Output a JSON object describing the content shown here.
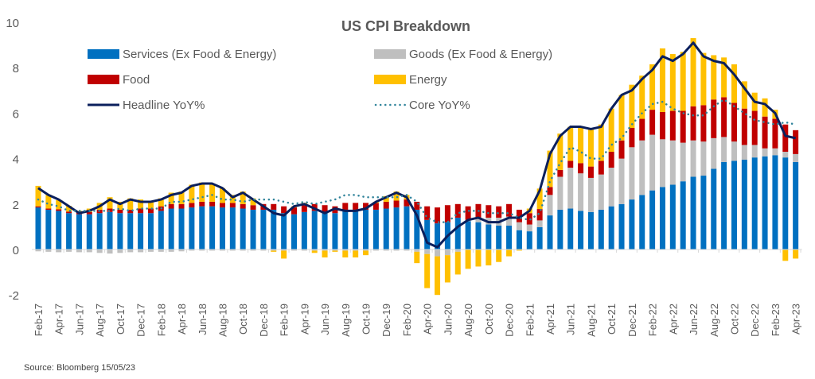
{
  "chart_data": {
    "type": "bar",
    "stacked": true,
    "title": "US CPI Breakdown",
    "xlabel": "",
    "ylabel": "",
    "ylim": [
      -2,
      10
    ],
    "y_ticks": [
      "-2",
      "0",
      "2",
      "4",
      "6",
      "8",
      "10"
    ],
    "y_tick_values": [
      -2,
      0,
      2,
      4,
      6,
      8,
      10
    ],
    "frequency": "monthly",
    "x_tick_labels": [
      "Feb-17",
      "Apr-17",
      "Jun-17",
      "Aug-17",
      "Oct-17",
      "Dec-17",
      "Feb-18",
      "Apr-18",
      "Jun-18",
      "Aug-18",
      "Oct-18",
      "Dec-18",
      "Feb-19",
      "Apr-19",
      "Jun-19",
      "Aug-19",
      "Oct-19",
      "Dec-19",
      "Feb-20",
      "Apr-20",
      "Jun-20",
      "Aug-20",
      "Oct-20",
      "Dec-20",
      "Feb-21",
      "Apr-21",
      "Jun-21",
      "Aug-21",
      "Oct-21",
      "Dec-21",
      "Feb-22",
      "Apr-22",
      "Jun-22",
      "Aug-22",
      "Oct-22",
      "Dec-22",
      "Feb-23",
      "Apr-23"
    ],
    "legend_position": "top",
    "grid": false,
    "series": [
      {
        "name": "Services (Ex Food & Energy)",
        "kind": "bar",
        "color": "#0070C0",
        "values": [
          1.85,
          1.75,
          1.7,
          1.6,
          1.55,
          1.55,
          1.6,
          1.65,
          1.6,
          1.6,
          1.6,
          1.6,
          1.7,
          1.8,
          1.8,
          1.85,
          1.9,
          1.9,
          1.85,
          1.85,
          1.8,
          1.75,
          1.75,
          1.75,
          1.6,
          1.55,
          1.65,
          1.7,
          1.65,
          1.6,
          1.75,
          1.75,
          1.75,
          1.75,
          1.8,
          1.85,
          1.9,
          1.75,
          1.3,
          1.15,
          1.2,
          1.4,
          1.25,
          1.2,
          1.1,
          1.05,
          1.05,
          0.85,
          0.8,
          0.98,
          1.5,
          1.75,
          1.8,
          1.7,
          1.65,
          1.75,
          1.9,
          2.0,
          2.2,
          2.4,
          2.6,
          2.75,
          2.85,
          3.0,
          3.2,
          3.25,
          3.55,
          3.85,
          3.9,
          3.95,
          4.05,
          4.1,
          4.15,
          4.05,
          3.85
        ]
      },
      {
        "name": "Goods (Ex Food & Energy)",
        "kind": "bar",
        "color": "#BFBFBF",
        "values": [
          -0.08,
          -0.1,
          -0.12,
          -0.1,
          -0.12,
          -0.12,
          -0.15,
          -0.18,
          -0.15,
          -0.12,
          -0.12,
          -0.1,
          -0.1,
          -0.1,
          -0.08,
          -0.05,
          -0.05,
          -0.05,
          -0.05,
          -0.05,
          -0.05,
          -0.05,
          -0.05,
          -0.05,
          -0.05,
          -0.05,
          -0.05,
          -0.05,
          -0.05,
          -0.05,
          -0.05,
          -0.05,
          -0.05,
          -0.05,
          -0.05,
          -0.05,
          -0.05,
          -0.1,
          -0.2,
          -0.3,
          -0.25,
          -0.1,
          0.05,
          0.2,
          0.3,
          0.35,
          0.4,
          0.35,
          0.3,
          0.3,
          0.9,
          1.45,
          1.8,
          1.65,
          1.5,
          1.55,
          1.7,
          2.0,
          2.3,
          2.4,
          2.45,
          2.1,
          1.95,
          1.7,
          1.6,
          1.5,
          1.35,
          1.1,
          0.85,
          0.65,
          0.55,
          0.35,
          0.3,
          0.25,
          0.35
        ]
      },
      {
        "name": "Food",
        "kind": "bar",
        "color": "#C00000",
        "values": [
          0.05,
          0.05,
          0.07,
          0.07,
          0.1,
          0.1,
          0.15,
          0.15,
          0.15,
          0.15,
          0.2,
          0.2,
          0.2,
          0.2,
          0.2,
          0.2,
          0.2,
          0.2,
          0.2,
          0.2,
          0.2,
          0.2,
          0.25,
          0.25,
          0.3,
          0.3,
          0.3,
          0.3,
          0.3,
          0.3,
          0.3,
          0.3,
          0.3,
          0.3,
          0.3,
          0.3,
          0.3,
          0.35,
          0.6,
          0.7,
          0.75,
          0.6,
          0.6,
          0.6,
          0.55,
          0.5,
          0.55,
          0.55,
          0.5,
          0.5,
          0.35,
          0.3,
          0.3,
          0.45,
          0.5,
          0.6,
          0.7,
          0.8,
          0.85,
          0.95,
          1.1,
          1.2,
          1.3,
          1.4,
          1.5,
          1.6,
          1.7,
          1.75,
          1.7,
          1.6,
          1.5,
          1.4,
          1.3,
          1.2,
          1.05
        ]
      },
      {
        "name": "Energy",
        "kind": "bar",
        "color": "#FFC000",
        "values": [
          0.9,
          0.6,
          0.4,
          0.25,
          0.05,
          0.15,
          0.3,
          0.5,
          0.35,
          0.5,
          0.4,
          0.35,
          0.35,
          0.5,
          0.55,
          0.8,
          0.85,
          0.8,
          0.65,
          0.35,
          0.55,
          0.3,
          0.0,
          -0.05,
          -0.35,
          0.05,
          0.1,
          -0.1,
          -0.3,
          -0.05,
          -0.3,
          -0.3,
          -0.2,
          0.05,
          0.25,
          0.4,
          0.2,
          -0.5,
          -1.5,
          -1.7,
          -1.2,
          -1.0,
          -0.85,
          -0.75,
          -0.7,
          -0.55,
          -0.3,
          -0.05,
          0.2,
          0.9,
          1.6,
          1.6,
          1.5,
          1.6,
          1.65,
          1.6,
          1.9,
          2.0,
          1.9,
          1.9,
          2.0,
          2.8,
          2.5,
          2.6,
          3.0,
          2.3,
          1.95,
          1.75,
          1.7,
          1.2,
          0.8,
          0.8,
          0.4,
          -0.5,
          -0.4
        ]
      },
      {
        "name": "Headline YoY%",
        "kind": "line",
        "color": "#0B1F5C",
        "values": [
          2.7,
          2.4,
          2.2,
          1.9,
          1.6,
          1.7,
          1.9,
          2.2,
          2.0,
          2.2,
          2.1,
          2.1,
          2.2,
          2.4,
          2.5,
          2.8,
          2.9,
          2.9,
          2.7,
          2.3,
          2.5,
          2.2,
          1.9,
          1.6,
          1.5,
          1.9,
          2.0,
          1.8,
          1.6,
          1.8,
          1.7,
          1.7,
          1.8,
          2.1,
          2.3,
          2.5,
          2.3,
          1.5,
          0.3,
          0.1,
          0.6,
          1.0,
          1.3,
          1.4,
          1.2,
          1.2,
          1.4,
          1.4,
          1.7,
          2.6,
          4.2,
          5.0,
          5.4,
          5.4,
          5.3,
          5.4,
          6.2,
          6.8,
          7.0,
          7.5,
          7.9,
          8.5,
          8.3,
          8.6,
          9.1,
          8.5,
          8.3,
          8.2,
          7.7,
          7.1,
          6.5,
          6.4,
          6.0,
          5.0,
          4.9
        ]
      },
      {
        "name": "Core YoY%",
        "kind": "dotted-line",
        "color": "#31849B",
        "values": [
          2.2,
          2.0,
          1.9,
          1.7,
          1.7,
          1.7,
          1.7,
          1.7,
          1.8,
          1.7,
          1.8,
          1.8,
          1.8,
          2.1,
          2.1,
          2.2,
          2.3,
          2.4,
          2.2,
          2.2,
          2.1,
          2.2,
          2.2,
          2.2,
          2.1,
          2.0,
          2.1,
          2.0,
          2.1,
          2.2,
          2.4,
          2.4,
          2.3,
          2.3,
          2.3,
          2.3,
          2.4,
          2.1,
          1.4,
          1.2,
          1.2,
          1.6,
          1.7,
          1.7,
          1.6,
          1.6,
          1.6,
          1.4,
          1.3,
          1.6,
          3.0,
          3.8,
          4.5,
          4.3,
          4.0,
          4.0,
          4.6,
          4.9,
          5.5,
          6.0,
          6.4,
          6.5,
          6.2,
          6.0,
          5.9,
          5.9,
          6.3,
          6.6,
          6.3,
          6.0,
          5.7,
          5.6,
          5.5,
          5.6,
          5.5
        ]
      }
    ],
    "annotation": "Source: Bloomberg 15/05/23"
  }
}
